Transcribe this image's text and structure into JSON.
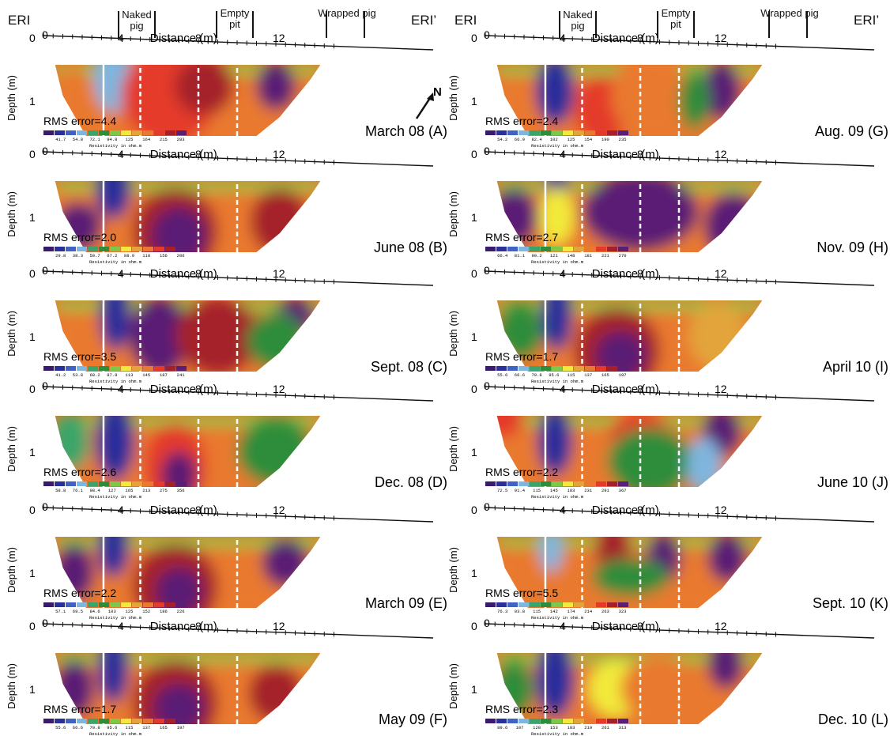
{
  "header": {
    "left_start": "ERI",
    "left_end": "ERI’",
    "right_start": "ERI",
    "right_end": "ERI’",
    "markers": [
      "Naked pig",
      "Empty pit",
      "Wrapped pig"
    ],
    "north": "N"
  },
  "common": {
    "x_axis_label": "Distance (m)",
    "y_axis_label": "Depth (m)",
    "x_ticks": [
      "0",
      "4",
      "8",
      "12"
    ],
    "y_ticks": [
      "0",
      "1"
    ],
    "colorbar_label": "Resistivity in ohm.m"
  },
  "colors": {
    "palette": [
      "#3a1a6e",
      "#2b2f9a",
      "#3f62c4",
      "#7fb6de",
      "#3aa56a",
      "#2d8d3b",
      "#7ec848",
      "#f2ea3a",
      "#e3a43a",
      "#e9792e",
      "#e43a2a",
      "#a5202a",
      "#5a1f75"
    ]
  },
  "chart_data": [
    {
      "type": "heatmap",
      "label": "March 08 (A)",
      "rms": "RMS error=4.4",
      "scale": [
        "41.7",
        "54.8",
        "72.1",
        "94.8",
        "125",
        "164",
        "215",
        "283"
      ],
      "blobs": [
        [
          3.6,
          0.35,
          0.7,
          0.4,
          1
        ],
        [
          3.6,
          0.55,
          1.0,
          0.7,
          3
        ],
        [
          6.5,
          0.9,
          2.5,
          1.0,
          10
        ],
        [
          8.3,
          0.7,
          1.5,
          0.6,
          11
        ],
        [
          12.0,
          0.7,
          1.0,
          0.5,
          12
        ],
        [
          1.5,
          0.9,
          1.0,
          0.6,
          9
        ]
      ]
    },
    {
      "type": "heatmap",
      "label": "June 08 (B)",
      "rms": "RMS error=2.0",
      "scale": [
        "29.8",
        "38.3",
        "50.7",
        "67.2",
        "88.9",
        "118",
        "156",
        "206"
      ],
      "blobs": [
        [
          3.6,
          0.45,
          0.9,
          0.6,
          1
        ],
        [
          6.8,
          1.3,
          2.2,
          0.9,
          11
        ],
        [
          7.0,
          1.4,
          1.4,
          0.6,
          12
        ],
        [
          1.8,
          1.2,
          1.2,
          0.5,
          12
        ],
        [
          12.2,
          1.1,
          1.5,
          0.7,
          11
        ]
      ]
    },
    {
      "type": "heatmap",
      "label": "Sept. 08 (C)",
      "rms": "RMS error=3.5",
      "scale": [
        "41.2",
        "53.8",
        "68.2",
        "87.8",
        "113",
        "145",
        "187",
        "241"
      ],
      "blobs": [
        [
          3.7,
          0.6,
          0.8,
          0.7,
          1
        ],
        [
          6.0,
          1.0,
          1.6,
          0.8,
          12
        ],
        [
          9.0,
          1.0,
          2.2,
          0.8,
          11
        ],
        [
          13.0,
          0.6,
          1.0,
          0.4,
          12
        ],
        [
          12.0,
          1.1,
          1.5,
          0.6,
          5
        ]
      ]
    },
    {
      "type": "heatmap",
      "label": "Dec. 08 (D)",
      "rms": "RMS error=2.6",
      "scale": [
        "58.8",
        "76.1",
        "98.4",
        "127",
        "165",
        "213",
        "275",
        "356"
      ],
      "blobs": [
        [
          3.7,
          0.8,
          1.0,
          0.8,
          1
        ],
        [
          6.8,
          1.3,
          1.6,
          0.9,
          10
        ],
        [
          7.0,
          1.5,
          0.9,
          0.5,
          12
        ],
        [
          1.4,
          0.8,
          1.0,
          0.6,
          4
        ],
        [
          12.0,
          1.0,
          2.0,
          0.7,
          5
        ]
      ]
    },
    {
      "type": "heatmap",
      "label": "March 09 (E)",
      "rms": "RMS error=2.2",
      "scale": [
        "57.1",
        "69.5",
        "84.6",
        "103",
        "125",
        "152",
        "186",
        "226"
      ],
      "blobs": [
        [
          3.6,
          0.5,
          0.8,
          0.6,
          1
        ],
        [
          6.8,
          1.3,
          2.2,
          0.9,
          11
        ],
        [
          7.0,
          1.4,
          1.2,
          0.5,
          12
        ],
        [
          1.6,
          1.0,
          1.0,
          0.6,
          12
        ],
        [
          12.5,
          0.8,
          1.2,
          0.5,
          12
        ]
      ]
    },
    {
      "type": "heatmap",
      "label": "May 09 (F)",
      "rms": "RMS error=1.7",
      "scale": [
        "55.6",
        "66.6",
        "79.8",
        "95.6",
        "115",
        "137",
        "165",
        "197"
      ],
      "blobs": [
        [
          3.6,
          0.6,
          0.8,
          0.7,
          1
        ],
        [
          6.8,
          1.3,
          2.2,
          0.9,
          11
        ],
        [
          7.0,
          1.4,
          1.3,
          0.5,
          12
        ],
        [
          1.6,
          1.0,
          1.0,
          0.6,
          12
        ],
        [
          12.0,
          1.1,
          1.4,
          0.6,
          11
        ]
      ]
    },
    {
      "type": "heatmap",
      "label": "Aug. 09 (G)",
      "rms": "RMS error=2.4",
      "scale": [
        "54.2",
        "66.9",
        "82.4",
        "102",
        "125",
        "154",
        "190",
        "235"
      ],
      "blobs": [
        [
          3.6,
          0.8,
          1.0,
          0.7,
          1
        ],
        [
          6.0,
          1.2,
          1.4,
          0.7,
          10
        ],
        [
          8.5,
          0.9,
          2.0,
          0.9,
          9
        ],
        [
          12.2,
          0.8,
          1.0,
          0.6,
          12
        ],
        [
          10.8,
          1.0,
          0.8,
          0.6,
          5
        ]
      ]
    },
    {
      "type": "heatmap",
      "label": "Nov. 09 (H)",
      "rms": "RMS error=2.7",
      "scale": [
        "66.4",
        "81.1",
        "99.2",
        "121",
        "148",
        "181",
        "221",
        "270"
      ],
      "blobs": [
        [
          3.7,
          0.3,
          0.6,
          0.3,
          1
        ],
        [
          8.0,
          0.9,
          3.0,
          0.8,
          12
        ],
        [
          1.5,
          1.0,
          1.2,
          0.6,
          12
        ],
        [
          12.8,
          1.2,
          1.5,
          0.7,
          12
        ],
        [
          3.7,
          1.0,
          0.9,
          0.6,
          7
        ]
      ]
    },
    {
      "type": "heatmap",
      "label": "April 10 (I)",
      "rms": "RMS error=1.7",
      "scale": [
        "55.6",
        "66.6",
        "79.8",
        "95.6",
        "115",
        "137",
        "165",
        "197"
      ],
      "blobs": [
        [
          3.7,
          0.6,
          0.8,
          0.7,
          1
        ],
        [
          6.8,
          1.3,
          2.2,
          0.9,
          11
        ],
        [
          7.0,
          1.4,
          1.3,
          0.5,
          12
        ],
        [
          1.8,
          0.9,
          1.2,
          0.6,
          5
        ],
        [
          12.0,
          1.0,
          1.5,
          0.7,
          8
        ]
      ]
    },
    {
      "type": "heatmap",
      "label": "June 10 (J)",
      "rms": "RMS error=2.2",
      "scale": [
        "72.5",
        "91.4",
        "115",
        "145",
        "183",
        "231",
        "291",
        "367"
      ],
      "blobs": [
        [
          3.6,
          0.8,
          0.9,
          0.7,
          1
        ],
        [
          0.8,
          0.3,
          1.2,
          0.4,
          10
        ],
        [
          8.0,
          0.6,
          1.6,
          0.4,
          10
        ],
        [
          12.2,
          0.6,
          1.0,
          0.5,
          12
        ],
        [
          8.5,
          1.2,
          2.2,
          0.7,
          5
        ],
        [
          11.3,
          1.3,
          0.9,
          0.6,
          3
        ]
      ]
    },
    {
      "type": "heatmap",
      "label": "Sept. 10 (K)",
      "rms": "RMS error=5.5",
      "scale": [
        "76.3",
        "93.8",
        "115",
        "142",
        "174",
        "214",
        "263",
        "323"
      ],
      "blobs": [
        [
          3.4,
          0.5,
          0.6,
          0.5,
          3
        ],
        [
          6.6,
          0.5,
          0.9,
          0.5,
          11
        ],
        [
          9.2,
          0.7,
          0.9,
          0.5,
          12
        ],
        [
          12.5,
          0.7,
          1.0,
          0.5,
          12
        ],
        [
          7.5,
          1.1,
          2.0,
          0.4,
          5
        ]
      ]
    },
    {
      "type": "heatmap",
      "label": "Dec. 10 (L)",
      "rms": "RMS error=2.3",
      "scale": [
        "89.6",
        "107",
        "128",
        "153",
        "183",
        "219",
        "261",
        "313"
      ],
      "blobs": [
        [
          3.6,
          0.8,
          1.0,
          0.8,
          1
        ],
        [
          6.8,
          1.0,
          1.5,
          0.6,
          7
        ],
        [
          9.0,
          1.0,
          2.0,
          0.7,
          9
        ],
        [
          12.4,
          0.5,
          0.9,
          0.5,
          12
        ],
        [
          1.5,
          1.0,
          1.0,
          0.6,
          5
        ]
      ]
    }
  ]
}
